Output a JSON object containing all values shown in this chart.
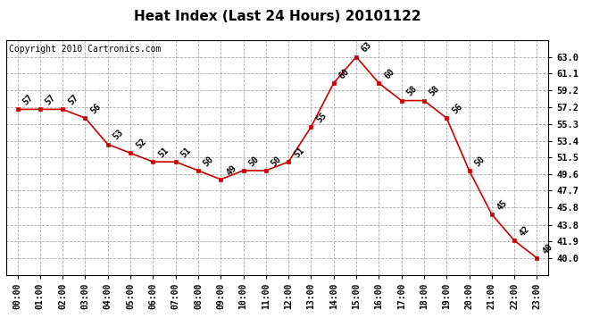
{
  "title": "Heat Index (Last 24 Hours) 20101122",
  "copyright": "Copyright 2010 Cartronics.com",
  "hours": [
    0,
    1,
    2,
    3,
    4,
    5,
    6,
    7,
    8,
    9,
    10,
    11,
    12,
    13,
    14,
    15,
    16,
    17,
    18,
    19,
    20,
    21,
    22,
    23
  ],
  "hour_labels": [
    "00:00",
    "01:00",
    "02:00",
    "03:00",
    "04:00",
    "05:00",
    "06:00",
    "07:00",
    "08:00",
    "09:00",
    "10:00",
    "11:00",
    "12:00",
    "13:00",
    "14:00",
    "15:00",
    "16:00",
    "17:00",
    "18:00",
    "19:00",
    "20:00",
    "21:00",
    "22:00",
    "23:00"
  ],
  "values": [
    57,
    57,
    57,
    56,
    53,
    52,
    51,
    51,
    50,
    49,
    50,
    50,
    51,
    55,
    60,
    63,
    60,
    58,
    58,
    56,
    50,
    45,
    42,
    40
  ],
  "ylim": [
    38.1,
    64.9
  ],
  "yticks": [
    40.0,
    41.9,
    43.8,
    45.8,
    47.7,
    49.6,
    51.5,
    53.4,
    55.3,
    57.2,
    59.2,
    61.1,
    63.0
  ],
  "line_color": "#cc0000",
  "marker_color": "#cc0000",
  "bg_color": "#ffffff",
  "grid_color": "#aaaaaa",
  "title_fontsize": 11,
  "annotation_fontsize": 7,
  "copyright_fontsize": 7
}
